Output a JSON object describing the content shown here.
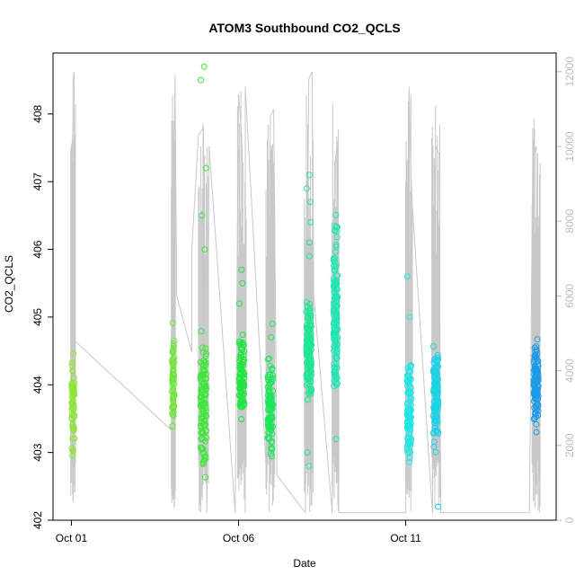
{
  "chart_data": {
    "type": "scatter",
    "title": "ATOM3 Southbound CO2_QCLS",
    "xlabel": "Date",
    "ylabel": "CO2_QCLS",
    "x_ticks": [
      "Oct 01",
      "Oct 06",
      "Oct 11"
    ],
    "x_tick_values": [
      0,
      5,
      10
    ],
    "xlim": [
      -0.55,
      14.5
    ],
    "ylim": [
      402,
      408.9
    ],
    "y_ticks": [
      402,
      403,
      404,
      405,
      406,
      407,
      408
    ],
    "right_axis": {
      "ylim": [
        0,
        12500
      ],
      "ticks": [
        0,
        2000,
        4000,
        6000,
        8000,
        10000,
        12000
      ],
      "color": "#bdbdbd"
    },
    "background_series_color": "#c8c8c8",
    "grid": false,
    "flights": [
      {
        "x_center": 0.05,
        "x_spread": 0.07,
        "y_range": [
          402.6,
          404.8
        ],
        "n": 60,
        "color": "#8ee635",
        "outliers": [],
        "alt_path": [
          [
            0.0,
            1000
          ],
          [
            0.05,
            11800
          ],
          [
            0.08,
            12000
          ],
          [
            0.1,
            4800
          ]
        ]
      },
      {
        "x_center": 3.05,
        "x_spread": 0.06,
        "y_range": [
          402.9,
          405.0
        ],
        "n": 60,
        "color": "#6ee63a",
        "outliers": [],
        "alt_path": [
          [
            3.0,
            2400
          ],
          [
            3.1,
            11900
          ],
          [
            3.15,
            6000
          ],
          [
            3.6,
            4500
          ]
        ]
      },
      {
        "x_center": 3.95,
        "x_spread": 0.15,
        "y_range": [
          402.5,
          405.0
        ],
        "n": 110,
        "color": "#3fe63a",
        "outliers": [
          408.7,
          408.5,
          407.2,
          406.5,
          406.0
        ],
        "alt_path": [
          [
            3.6,
            7200
          ],
          [
            3.8,
            10300
          ],
          [
            3.95,
            10500
          ],
          [
            4.05,
            200
          ],
          [
            4.12,
            10000
          ]
        ]
      },
      {
        "x_center": 5.1,
        "x_spread": 0.13,
        "y_range": [
          403.3,
          404.9
        ],
        "n": 90,
        "color": "#1ee63f",
        "outliers": [
          405.7,
          405.5,
          405.2
        ],
        "alt_path": [
          [
            4.9,
            200
          ],
          [
            5.0,
            11400
          ],
          [
            5.1,
            10200
          ],
          [
            5.2,
            200
          ],
          [
            5.2,
            11600
          ]
        ]
      },
      {
        "x_center": 5.95,
        "x_spread": 0.13,
        "y_range": [
          402.7,
          404.6
        ],
        "n": 100,
        "color": "#1ee65a",
        "outliers": [
          404.9,
          404.7
        ],
        "alt_path": [
          [
            5.85,
            1000
          ],
          [
            5.95,
            10800
          ],
          [
            6.05,
            11000
          ],
          [
            6.15,
            1200
          ]
        ]
      },
      {
        "x_center": 7.1,
        "x_spread": 0.13,
        "y_range": [
          403.5,
          405.5
        ],
        "n": 140,
        "color": "#1ee695",
        "outliers": [
          407.1,
          406.9,
          406.7,
          406.4,
          406.1,
          405.9,
          402.8,
          403.0
        ],
        "alt_path": [
          [
            7.0,
            200
          ],
          [
            7.1,
            11800
          ],
          [
            7.2,
            12000
          ],
          [
            7.25,
            6000
          ]
        ]
      },
      {
        "x_center": 7.9,
        "x_spread": 0.1,
        "y_range": [
          403.2,
          406.8
        ],
        "n": 140,
        "color": "#1ee6b4",
        "outliers": [
          403.2,
          404.0
        ],
        "alt_path": [
          [
            7.8,
            200
          ],
          [
            7.9,
            9700
          ],
          [
            7.95,
            10000
          ],
          [
            8.0,
            200
          ]
        ]
      },
      {
        "x_center": 10.1,
        "x_spread": 0.1,
        "y_range": [
          402.6,
          404.6
        ],
        "n": 100,
        "color": "#1ee6e6",
        "outliers": [
          405.6,
          405.0
        ],
        "alt_path": [
          [
            10.0,
            200
          ],
          [
            10.1,
            11600
          ],
          [
            10.15,
            9500
          ],
          [
            10.2,
            8400
          ]
        ]
      },
      {
        "x_center": 10.9,
        "x_spread": 0.12,
        "y_range": [
          402.9,
          404.9
        ],
        "n": 130,
        "color": "#1ed2e6",
        "outliers": [
          402.2
        ],
        "alt_path": [
          [
            10.8,
            200
          ],
          [
            10.9,
            10000
          ],
          [
            11.0,
            9800
          ],
          [
            11.05,
            200
          ]
        ]
      },
      {
        "x_center": 13.9,
        "x_spread": 0.12,
        "y_range": [
          403.3,
          404.8
        ],
        "n": 120,
        "color": "#1e9be6",
        "outliers": [
          403.3
        ],
        "alt_path": [
          [
            13.7,
            200
          ],
          [
            13.8,
            9600
          ],
          [
            13.9,
            10000
          ],
          [
            14.0,
            200
          ]
        ]
      }
    ]
  }
}
